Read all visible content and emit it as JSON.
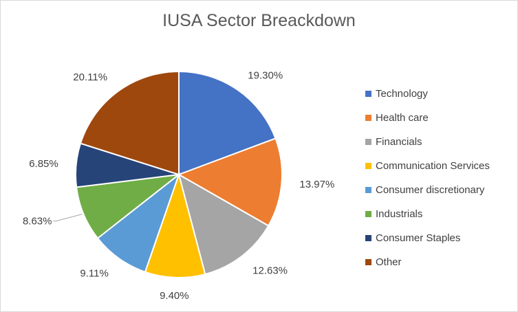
{
  "chart_data": {
    "type": "pie",
    "title": "IUSA Sector Breackdown",
    "categories": [
      "Technology",
      "Health care",
      "Financials",
      "Communication Services",
      "Consumer discretionary",
      "Industrials",
      "Consumer Staples",
      "Other"
    ],
    "values": [
      19.3,
      13.97,
      12.63,
      9.4,
      9.11,
      8.63,
      6.85,
      20.11
    ],
    "labels": [
      "19.30%",
      "13.97%",
      "12.63%",
      "9.40%",
      "9.11%",
      "8.63%",
      "6.85%",
      "20.11%"
    ],
    "colors": [
      "#4472c4",
      "#ed7d31",
      "#a5a5a5",
      "#ffc000",
      "#5b9bd5",
      "#70ad47",
      "#264478",
      "#9e480e"
    ],
    "legend_position": "right"
  }
}
